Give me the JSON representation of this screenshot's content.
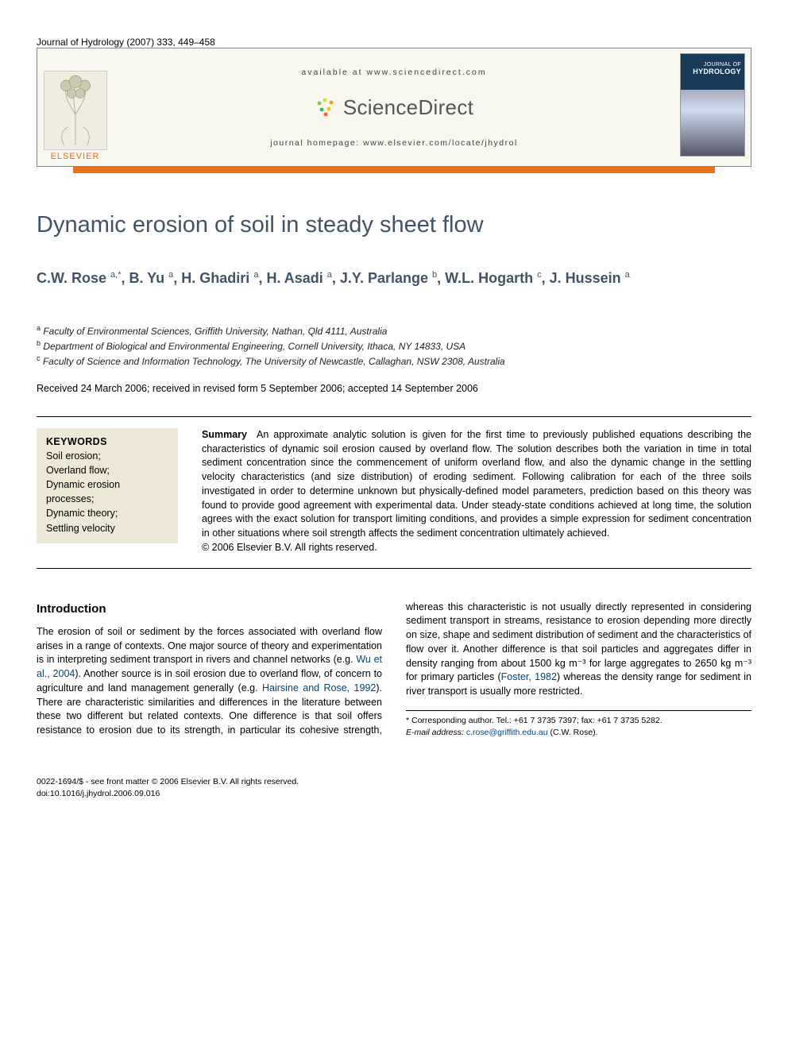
{
  "header": {
    "citation": "Journal of Hydrology (2007) 333, 449–458"
  },
  "banner": {
    "elsevier": "ELSEVIER",
    "available": "available at www.sciencedirect.com",
    "sciencedirect": "ScienceDirect",
    "homepage": "journal homepage: www.elsevier.com/locate/jhydrol",
    "journal_cover_line1": "JOURNAL OF",
    "journal_cover_line2": "HYDROLOGY",
    "orange_rule_color": "#e9711c",
    "banner_bg": "#f7f6ef"
  },
  "article": {
    "title": "Dynamic erosion of soil in steady sheet flow",
    "authors_html": "C.W. Rose <sup>a,*</sup>, B. Yu <sup>a</sup>, H. Ghadiri <sup>a</sup>, H. Asadi <sup>a</sup>, J.Y. Parlange <sup>b</sup>, W.L. Hogarth <sup>c</sup>, J. Hussein <sup>a</sup>",
    "affiliations": [
      {
        "sup": "a",
        "text": "Faculty of Environmental Sciences, Griffith University, Nathan, Qld 4111, Australia"
      },
      {
        "sup": "b",
        "text": "Department of Biological and Environmental Engineering, Cornell University, Ithaca, NY 14833, USA"
      },
      {
        "sup": "c",
        "text": "Faculty of Science and Information Technology, The University of Newcastle, Callaghan, NSW 2308, Australia"
      }
    ],
    "dates": "Received 24 March 2006; received in revised form 5 September 2006; accepted 14 September 2006",
    "keywords_head": "KEYWORDS",
    "keywords": [
      "Soil erosion;",
      "Overland flow;",
      "Dynamic erosion processes;",
      "Dynamic theory;",
      "Settling velocity"
    ],
    "summary_label": "Summary",
    "summary": "An approximate analytic solution is given for the first time to previously published equations describing the characteristics of dynamic soil erosion caused by overland flow. The solution describes both the variation in time in total sediment concentration since the commencement of uniform overland flow, and also the dynamic change in the settling velocity characteristics (and size distribution) of eroding sediment. Following calibration for each of the three soils investigated in order to determine unknown but physically-defined model parameters, prediction based on this theory was found to provide good agreement with experimental data. Under steady-state conditions achieved at long time, the solution agrees with the exact solution for transport limiting conditions, and provides a simple expression for sediment concentration in other situations where soil strength affects the sediment concentration ultimately achieved.",
    "copyright": "© 2006 Elsevier B.V. All rights reserved."
  },
  "intro": {
    "heading": "Introduction",
    "p1_a": "The erosion of soil or sediment by the forces associated with overland flow arises in a range of contexts. One major source of theory and experimentation is in interpreting sediment transport in rivers and channel networks (e.g. ",
    "p1_link1": "Wu et al., 2004",
    "p1_b": "). Another source is in soil erosion due to overland flow, of concern to agriculture and land management generally (e.g. ",
    "p1_link2": "Hairsine and Rose, 1992",
    "p1_c": "). There are charac",
    "p2_a": "teristic similarities and differences in the literature between these two different but related contexts. One difference is that soil offers resistance to erosion due to its strength, in particular its cohesive strength, whereas this characteristic is not usually directly represented in considering sediment transport in streams, resistance to erosion depending more directly on size, shape and sediment distribution of sediment and the characteristics of flow over it. Another difference is that soil particles and aggregates differ in density ranging from about 1500 kg m⁻³ for large aggregates to 2650 kg m⁻³ for primary particles (",
    "p2_link1": "Foster, 1982",
    "p2_b": ") whereas the density range for sediment in river transport is usually more restricted."
  },
  "footnotes": {
    "corr": "* Corresponding author. Tel.: +61 7 3735 7397; fax: +61 7 3735 5282.",
    "email_label": "E-mail address: ",
    "email": "c.rose@griffith.edu.au",
    "email_tail": " (C.W. Rose)."
  },
  "doi": {
    "line1": "0022-1694/$ - see front matter © 2006 Elsevier B.V. All rights reserved.",
    "line2": "doi:10.1016/j.jhydrol.2006.09.016"
  },
  "colors": {
    "title_color": "#41536b",
    "link_color": "#004488",
    "kw_bg": "#eee9d6"
  }
}
